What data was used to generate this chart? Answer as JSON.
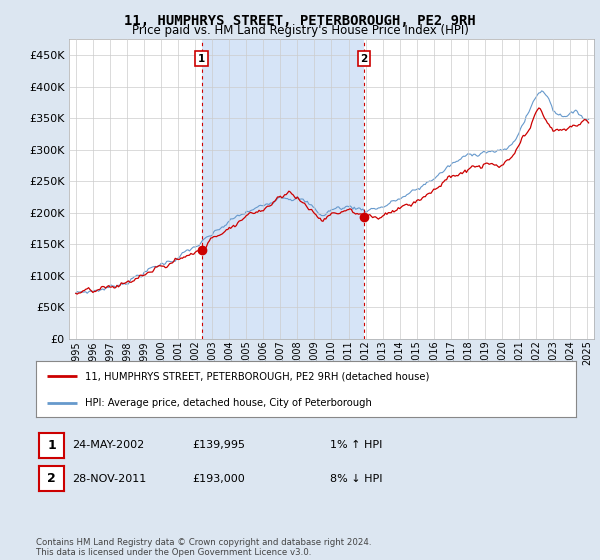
{
  "title": "11, HUMPHRYS STREET, PETERBOROUGH, PE2 9RH",
  "subtitle": "Price paid vs. HM Land Registry's House Price Index (HPI)",
  "legend_line1": "11, HUMPHRYS STREET, PETERBOROUGH, PE2 9RH (detached house)",
  "legend_line2": "HPI: Average price, detached house, City of Peterborough",
  "annotation1_date": "24-MAY-2002",
  "annotation1_price": "£139,995",
  "annotation1_hpi": "1% ↑ HPI",
  "annotation2_date": "28-NOV-2011",
  "annotation2_price": "£193,000",
  "annotation2_hpi": "8% ↓ HPI",
  "footer": "Contains HM Land Registry data © Crown copyright and database right 2024.\nThis data is licensed under the Open Government Licence v3.0.",
  "ylim": [
    0,
    475000
  ],
  "yticks": [
    0,
    50000,
    100000,
    150000,
    200000,
    250000,
    300000,
    350000,
    400000,
    450000
  ],
  "ytick_labels": [
    "£0",
    "£50K",
    "£100K",
    "£150K",
    "£200K",
    "£250K",
    "£300K",
    "£350K",
    "£400K",
    "£450K"
  ],
  "background_color": "#dce6f1",
  "plot_bg_color": "#ffffff",
  "shade_color": "#d6e4f7",
  "red_color": "#cc0000",
  "blue_color": "#6699cc",
  "marker1_x": 2002.38,
  "marker1_y": 139995,
  "marker2_x": 2011.91,
  "marker2_y": 193000,
  "vline1_x": 2002.38,
  "vline2_x": 2011.91,
  "xlim_left": 1994.6,
  "xlim_right": 2025.4
}
